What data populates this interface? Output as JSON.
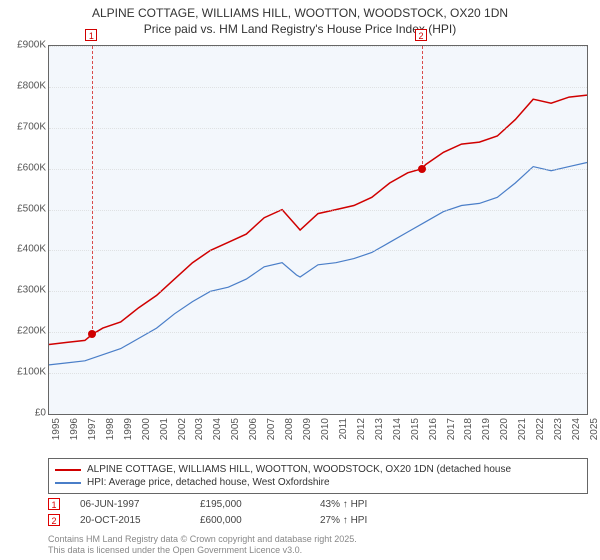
{
  "title": {
    "line1": "ALPINE COTTAGE, WILLIAMS HILL, WOOTTON, WOODSTOCK, OX20 1DN",
    "line2": "Price paid vs. HM Land Registry's House Price Index (HPI)"
  },
  "chart": {
    "type": "line",
    "background_color": "#ffffff",
    "plot_border_color": "#666666",
    "grid_color": "#cccccc",
    "hpi_band_color": "#e8f0fa",
    "x_years": [
      1995,
      1996,
      1997,
      1998,
      1999,
      2000,
      2001,
      2002,
      2003,
      2004,
      2005,
      2006,
      2007,
      2008,
      2009,
      2010,
      2011,
      2012,
      2013,
      2014,
      2015,
      2016,
      2017,
      2018,
      2019,
      2020,
      2021,
      2022,
      2023,
      2024,
      2025
    ],
    "x_start_year": 1995,
    "x_tick_step_years": 1,
    "y_axis": {
      "min": 0,
      "max": 900000,
      "tick_step": 100000,
      "tick_labels": [
        "£0",
        "£100K",
        "£200K",
        "£300K",
        "£400K",
        "£500K",
        "£600K",
        "£700K",
        "£800K",
        "£900K"
      ]
    },
    "series": [
      {
        "name": "property",
        "label": "ALPINE COTTAGE, WILLIAMS HILL, WOOTTON, WOODSTOCK, OX20 1DN (detached house",
        "color": "#d00000",
        "line_width": 1.5,
        "points": [
          [
            1995.0,
            170000
          ],
          [
            1996.0,
            175000
          ],
          [
            1997.0,
            180000
          ],
          [
            1997.42,
            195000
          ],
          [
            1998.0,
            210000
          ],
          [
            1999.0,
            225000
          ],
          [
            2000.0,
            260000
          ],
          [
            2001.0,
            290000
          ],
          [
            2002.0,
            330000
          ],
          [
            2003.0,
            370000
          ],
          [
            2004.0,
            400000
          ],
          [
            2005.0,
            420000
          ],
          [
            2006.0,
            440000
          ],
          [
            2007.0,
            480000
          ],
          [
            2008.0,
            500000
          ],
          [
            2008.8,
            460000
          ],
          [
            2009.0,
            450000
          ],
          [
            2010.0,
            490000
          ],
          [
            2011.0,
            500000
          ],
          [
            2012.0,
            510000
          ],
          [
            2013.0,
            530000
          ],
          [
            2014.0,
            565000
          ],
          [
            2015.0,
            590000
          ],
          [
            2015.8,
            600000
          ],
          [
            2016.0,
            610000
          ],
          [
            2017.0,
            640000
          ],
          [
            2018.0,
            660000
          ],
          [
            2019.0,
            665000
          ],
          [
            2020.0,
            680000
          ],
          [
            2021.0,
            720000
          ],
          [
            2022.0,
            770000
          ],
          [
            2023.0,
            760000
          ],
          [
            2024.0,
            775000
          ],
          [
            2025.0,
            780000
          ]
        ]
      },
      {
        "name": "hpi",
        "label": "HPI: Average price, detached house, West Oxfordshire",
        "color": "#4a7ec8",
        "line_width": 1.2,
        "points": [
          [
            1995.0,
            120000
          ],
          [
            1996.0,
            125000
          ],
          [
            1997.0,
            130000
          ],
          [
            1998.0,
            145000
          ],
          [
            1999.0,
            160000
          ],
          [
            2000.0,
            185000
          ],
          [
            2001.0,
            210000
          ],
          [
            2002.0,
            245000
          ],
          [
            2003.0,
            275000
          ],
          [
            2004.0,
            300000
          ],
          [
            2005.0,
            310000
          ],
          [
            2006.0,
            330000
          ],
          [
            2007.0,
            360000
          ],
          [
            2008.0,
            370000
          ],
          [
            2008.8,
            340000
          ],
          [
            2009.0,
            335000
          ],
          [
            2010.0,
            365000
          ],
          [
            2011.0,
            370000
          ],
          [
            2012.0,
            380000
          ],
          [
            2013.0,
            395000
          ],
          [
            2014.0,
            420000
          ],
          [
            2015.0,
            445000
          ],
          [
            2016.0,
            470000
          ],
          [
            2017.0,
            495000
          ],
          [
            2018.0,
            510000
          ],
          [
            2019.0,
            515000
          ],
          [
            2020.0,
            530000
          ],
          [
            2021.0,
            565000
          ],
          [
            2022.0,
            605000
          ],
          [
            2023.0,
            595000
          ],
          [
            2024.0,
            605000
          ],
          [
            2025.0,
            615000
          ]
        ]
      }
    ],
    "sale_markers": [
      {
        "index": "1",
        "year": 1997.42,
        "price": 195000,
        "label_top": true
      },
      {
        "index": "2",
        "year": 2015.8,
        "price": 600000,
        "label_top": true
      }
    ],
    "sale_dot_color": "#d00000",
    "marker_border_color": "#d00000"
  },
  "legend": {
    "border_color": "#666666",
    "font_size": 10
  },
  "sales": [
    {
      "index": "1",
      "date": "06-JUN-1997",
      "price": "£195,000",
      "hpi_delta": "43% ↑ HPI"
    },
    {
      "index": "2",
      "date": "20-OCT-2015",
      "price": "£600,000",
      "hpi_delta": "27% ↑ HPI"
    }
  ],
  "attribution": {
    "line1": "Contains HM Land Registry data © Crown copyright and database right 2025.",
    "line2": "This data is licensed under the Open Government Licence v3.0."
  }
}
